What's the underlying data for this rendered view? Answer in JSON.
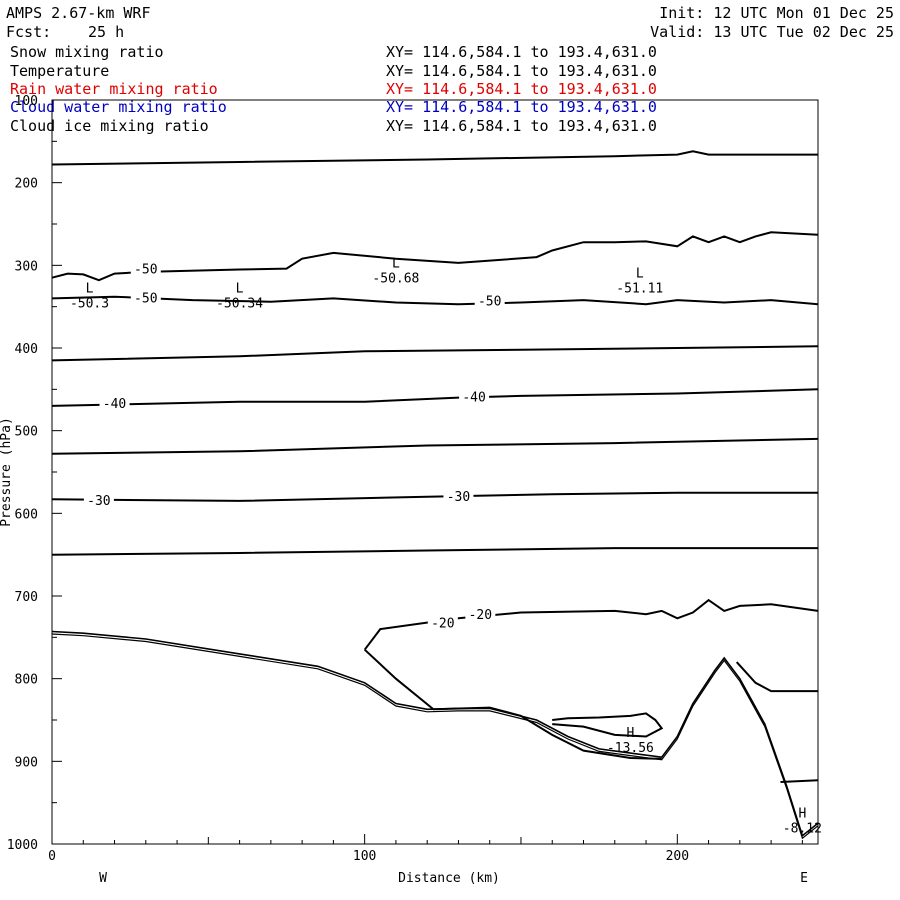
{
  "header": {
    "model": "AMPS 2.67-km WRF",
    "fcst_label": "Fcst:",
    "fcst_value": "25 h",
    "init": "Init: 12 UTC Mon 01 Dec 25",
    "valid": "Valid: 13 UTC Tue 02 Dec 25"
  },
  "fields": [
    {
      "name": "Snow mixing ratio",
      "xy": "XY= 114.6,584.1 to 193.4,631.0",
      "color": "#000000"
    },
    {
      "name": "Temperature",
      "xy": "XY= 114.6,584.1 to 193.4,631.0",
      "color": "#000000"
    },
    {
      "name": "Rain water mixing ratio",
      "xy": "XY= 114.6,584.1 to 193.4,631.0",
      "color": "#e00000"
    },
    {
      "name": "Cloud water mixing ratio",
      "xy": "XY= 114.6,584.1 to 193.4,631.0",
      "color": "#0000c0"
    },
    {
      "name": "Cloud ice mixing ratio",
      "xy": "XY= 114.6,584.1 to 193.4,631.0",
      "color": "#000000"
    }
  ],
  "chart_data": {
    "type": "cross-section contour",
    "xlabel": "Distance (km)",
    "ylabel": "Pressure (hPa)",
    "xlim": [
      0,
      245
    ],
    "ylim": [
      1000,
      100
    ],
    "xticks": [
      0,
      100,
      200
    ],
    "yticks": [
      100,
      200,
      300,
      400,
      500,
      600,
      700,
      800,
      900,
      1000
    ],
    "left_end_label": "W",
    "right_end_label": "E",
    "temperature_contours": [
      {
        "level": -60,
        "points": [
          [
            0,
            178
          ],
          [
            60,
            175
          ],
          [
            120,
            172
          ],
          [
            180,
            168
          ],
          [
            200,
            166
          ],
          [
            205,
            162
          ],
          [
            210,
            166
          ],
          [
            245,
            166
          ]
        ]
      },
      {
        "level": -50,
        "points": [
          [
            0,
            315
          ],
          [
            5,
            310
          ],
          [
            10,
            311
          ],
          [
            15,
            318
          ],
          [
            20,
            310
          ],
          [
            30,
            308
          ],
          [
            60,
            305
          ],
          [
            75,
            304
          ],
          [
            80,
            292
          ],
          [
            90,
            285
          ],
          [
            110,
            292
          ],
          [
            130,
            297
          ],
          [
            145,
            293
          ],
          [
            155,
            290
          ],
          [
            160,
            282
          ],
          [
            170,
            272
          ],
          [
            180,
            272
          ],
          [
            190,
            271
          ],
          [
            200,
            277
          ],
          [
            205,
            265
          ],
          [
            210,
            272
          ],
          [
            215,
            265
          ],
          [
            220,
            272
          ],
          [
            225,
            265
          ],
          [
            230,
            260
          ],
          [
            245,
            263
          ]
        ],
        "labels": [
          [
            30,
            305
          ]
        ],
        "label_text": "-50"
      },
      {
        "level": -50,
        "points": [
          [
            0,
            340
          ],
          [
            20,
            338
          ],
          [
            45,
            342
          ],
          [
            70,
            344
          ],
          [
            90,
            340
          ],
          [
            110,
            345
          ],
          [
            130,
            347
          ],
          [
            150,
            345
          ],
          [
            170,
            342
          ],
          [
            190,
            347
          ],
          [
            200,
            342
          ],
          [
            215,
            345
          ],
          [
            230,
            342
          ],
          [
            245,
            347
          ]
        ],
        "labels": [
          [
            30,
            340
          ],
          [
            140,
            344
          ]
        ],
        "label_text": "-50"
      },
      {
        "level": -45,
        "points": [
          [
            0,
            415
          ],
          [
            60,
            410
          ],
          [
            100,
            404
          ],
          [
            150,
            402
          ],
          [
            200,
            400
          ],
          [
            245,
            398
          ]
        ]
      },
      {
        "level": -40,
        "points": [
          [
            0,
            470
          ],
          [
            60,
            465
          ],
          [
            100,
            465
          ],
          [
            130,
            460
          ],
          [
            150,
            458
          ],
          [
            200,
            455
          ],
          [
            245,
            450
          ]
        ],
        "labels": [
          [
            20,
            468
          ],
          [
            135,
            460
          ]
        ],
        "label_text": "-40"
      },
      {
        "level": -35,
        "points": [
          [
            0,
            528
          ],
          [
            60,
            525
          ],
          [
            120,
            518
          ],
          [
            180,
            515
          ],
          [
            245,
            510
          ]
        ]
      },
      {
        "level": -30,
        "points": [
          [
            0,
            583
          ],
          [
            60,
            585
          ],
          [
            120,
            580
          ],
          [
            160,
            577
          ],
          [
            200,
            575
          ],
          [
            245,
            575
          ]
        ],
        "labels": [
          [
            15,
            585
          ],
          [
            130,
            580
          ]
        ],
        "label_text": "-30"
      },
      {
        "level": -25,
        "points": [
          [
            0,
            650
          ],
          [
            60,
            648
          ],
          [
            120,
            645
          ],
          [
            180,
            642
          ],
          [
            245,
            642
          ]
        ]
      },
      {
        "level": -20,
        "points": [
          [
            100,
            765
          ],
          [
            105,
            740
          ],
          [
            130,
            727
          ],
          [
            150,
            720
          ],
          [
            180,
            718
          ],
          [
            190,
            722
          ],
          [
            195,
            718
          ],
          [
            200,
            727
          ],
          [
            205,
            720
          ],
          [
            210,
            705
          ],
          [
            215,
            718
          ],
          [
            220,
            712
          ],
          [
            230,
            710
          ],
          [
            245,
            718
          ]
        ],
        "labels": [
          [
            125,
            733
          ],
          [
            137,
            723
          ]
        ],
        "label_text": "-20"
      },
      {
        "level": -15,
        "points": [
          [
            100,
            765
          ],
          [
            110,
            800
          ],
          [
            122,
            837
          ],
          [
            140,
            835
          ],
          [
            150,
            845
          ],
          [
            160,
            868
          ],
          [
            170,
            887
          ],
          [
            185,
            896
          ],
          [
            195,
            897
          ]
        ]
      },
      {
        "level": -15,
        "points": [
          [
            160,
            850
          ],
          [
            165,
            848
          ],
          [
            175,
            847
          ],
          [
            185,
            845
          ],
          [
            190,
            842
          ],
          [
            193,
            850
          ],
          [
            195,
            860
          ],
          [
            190,
            870
          ],
          [
            180,
            868
          ],
          [
            170,
            858
          ],
          [
            160,
            855
          ]
        ]
      },
      {
        "level": -10,
        "points": [
          [
            233,
            925
          ],
          [
            245,
            923
          ]
        ]
      },
      {
        "level": -10,
        "points": [
          [
            219,
            780
          ],
          [
            225,
            805
          ],
          [
            230,
            815
          ],
          [
            245,
            815
          ]
        ]
      }
    ],
    "extrema": [
      {
        "type": "L",
        "value": "-50.3",
        "x": 12,
        "p": 340
      },
      {
        "type": "L",
        "value": "-50.34",
        "x": 60,
        "p": 340
      },
      {
        "type": "L",
        "value": "-50.68",
        "x": 110,
        "p": 310
      },
      {
        "type": "L",
        "value": "-51.11",
        "x": 188,
        "p": 322
      },
      {
        "type": "H",
        "value": "-13.56",
        "x": 185,
        "p": 878
      },
      {
        "type": "H",
        "value": "-8.12",
        "x": 240,
        "p": 975
      }
    ],
    "terrain": [
      [
        0,
        743
      ],
      [
        10,
        745
      ],
      [
        30,
        752
      ],
      [
        60,
        770
      ],
      [
        85,
        785
      ],
      [
        100,
        805
      ],
      [
        110,
        830
      ],
      [
        120,
        837
      ],
      [
        130,
        836
      ],
      [
        140,
        836
      ],
      [
        155,
        850
      ],
      [
        165,
        870
      ],
      [
        175,
        885
      ],
      [
        185,
        890
      ],
      [
        195,
        895
      ],
      [
        200,
        870
      ],
      [
        205,
        830
      ],
      [
        212,
        790
      ],
      [
        215,
        775
      ],
      [
        220,
        800
      ],
      [
        228,
        855
      ],
      [
        235,
        930
      ],
      [
        240,
        990
      ],
      [
        245,
        975
      ]
    ]
  }
}
